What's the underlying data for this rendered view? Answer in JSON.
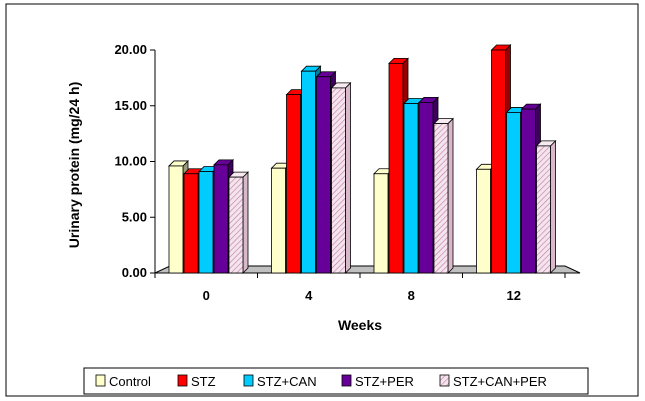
{
  "chart_data": {
    "type": "bar",
    "title": "",
    "xlabel": "Weeks",
    "ylabel": "Urinary protein (mg/24 h)",
    "ylim": [
      0,
      20
    ],
    "yticks": [
      "0.00",
      "5.00",
      "10.00",
      "15.00",
      "20.00"
    ],
    "ytick_values": [
      0,
      5,
      10,
      15,
      20
    ],
    "categories": [
      "0",
      "4",
      "8",
      "12"
    ],
    "grid": false,
    "legend_position": "bottom",
    "series": [
      {
        "name": "Control",
        "color": "#ffffcc",
        "pattern": "solid",
        "values": [
          9.6,
          9.4,
          8.9,
          9.3
        ]
      },
      {
        "name": "STZ",
        "color": "#ff0000",
        "pattern": "solid",
        "values": [
          8.9,
          16.0,
          18.8,
          20.0
        ]
      },
      {
        "name": "STZ+CAN",
        "color": "#00ccff",
        "pattern": "solid",
        "values": [
          9.1,
          18.1,
          15.2,
          14.4
        ]
      },
      {
        "name": "STZ+PER",
        "color": "#660099",
        "pattern": "solid",
        "values": [
          9.7,
          17.6,
          15.3,
          14.7
        ]
      },
      {
        "name": "STZ+CAN+PER",
        "color": "#f2d9e6",
        "pattern": "hatched",
        "values": [
          8.6,
          16.6,
          13.4,
          11.4
        ]
      }
    ]
  }
}
